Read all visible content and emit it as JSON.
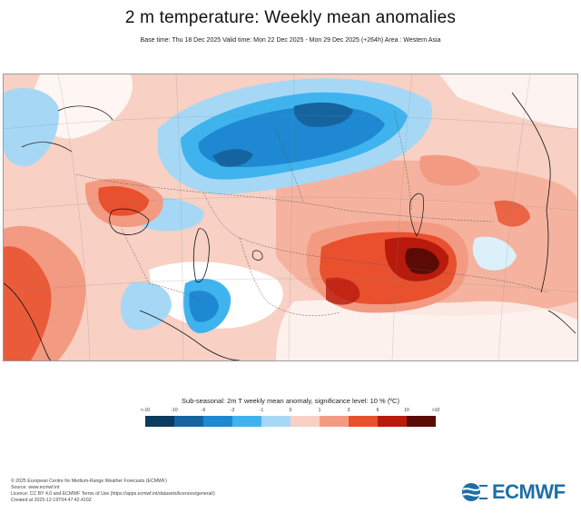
{
  "header": {
    "title": "2 m temperature: Weekly mean anomalies",
    "subtitle": "Base time: Thu 18 Dec 2025 Valid time: Mon 22 Dec 2025 - Mon 29 Dec 2025 (+264h) Area : Western Asia"
  },
  "legend": {
    "title": "Sub-seasonal: 2m T weekly mean anomaly, significance level: 10 % (ºC)",
    "ticks": [
      "<-10",
      "-10",
      "-6",
      "-3",
      "-1",
      "0",
      "1",
      "3",
      "6",
      "10",
      ">10"
    ],
    "colors": [
      "#0b3b5e",
      "#1564a0",
      "#1e88d2",
      "#3fb3ee",
      "#a6d8f5",
      "#dcf0fa",
      "#f8d0c4",
      "#f39a82",
      "#e8502e",
      "#b81a0c",
      "#5c0a04"
    ]
  },
  "map": {
    "land_neutral_color": "#ffffff",
    "coastline_color": "#111111",
    "border_color": "#555555"
  },
  "footer": {
    "line1": "© 2025 European Centre for Medium-Range Weather Forecasts (ECMWF)",
    "line2": "Source: www.ecmwf.int",
    "line3": "Licence: CC BY 4.0 and ECMWF Terms of Use (https://apps.ecmwf.int/datasets/licences/general/)",
    "line4": "Created at 2025-12-19T04:47:42.410Z"
  },
  "logo": {
    "text": "ECMWF"
  }
}
